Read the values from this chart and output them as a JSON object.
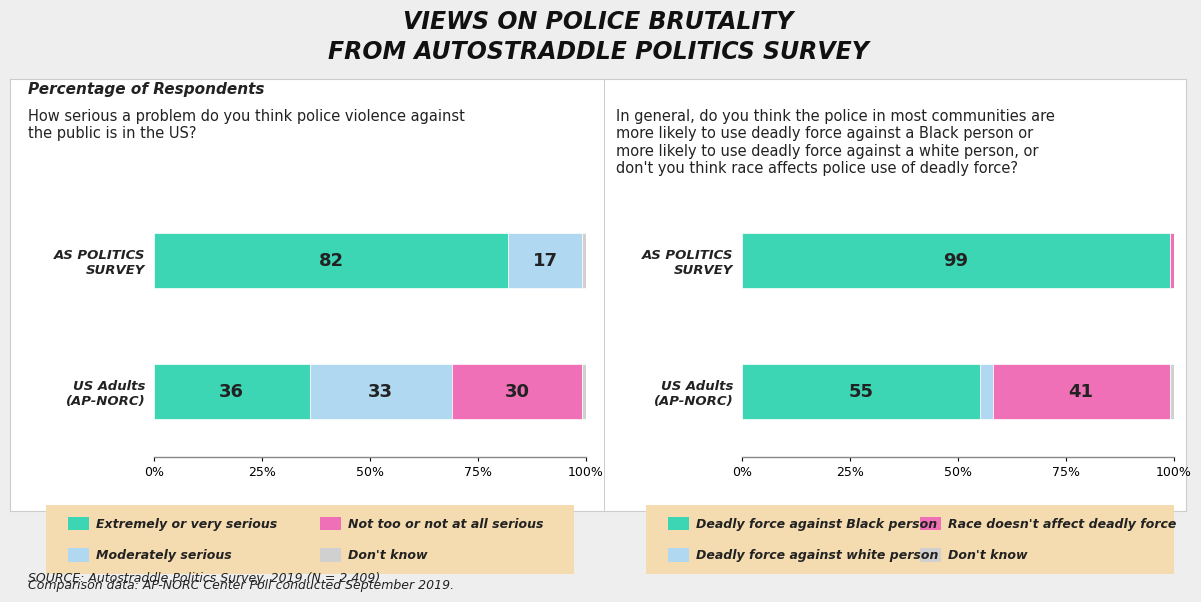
{
  "title_line1": "VIEWS ON POLICE BRUTALITY",
  "title_line2": "FROM AUTOSTRADDLE POLITICS SURVEY",
  "subtitle": "Percentage of Respondents",
  "background_color": "#eeeeee",
  "chart_bg": "#ffffff",
  "legend_bg": "#f5dcb0",
  "q1_question": "How serious a problem do you think police violence against\nthe public is in the US?",
  "q1_rows": [
    "AS POLITICS\nSURVEY",
    "US Adults\n(AP-NORC)"
  ],
  "q1_data": [
    [
      82,
      17,
      0,
      1
    ],
    [
      36,
      33,
      30,
      1
    ]
  ],
  "q1_colors": [
    "#3dd6b5",
    "#b0d8f0",
    "#f070b8",
    "#d0d0d0"
  ],
  "q2_question": "In general, do you think the police in most communities are\nmore likely to use deadly force against a Black person or\nmore likely to use deadly force against a white person, or\ndon't you think race affects police use of deadly force?",
  "q2_rows": [
    "AS POLITICS\nSURVEY",
    "US Adults\n(AP-NORC)"
  ],
  "q2_data": [
    [
      99,
      0,
      1,
      0
    ],
    [
      55,
      3,
      41,
      1
    ]
  ],
  "q2_colors": [
    "#3dd6b5",
    "#b0d8f0",
    "#f070b8",
    "#d0d0d0"
  ],
  "legend1_items": [
    {
      "color": "#3dd6b5",
      "label": "Extremely or very serious"
    },
    {
      "color": "#b0d8f0",
      "label": "Moderately serious"
    },
    {
      "color": "#f070b8",
      "label": "Not too or not at all serious"
    },
    {
      "color": "#d0d0d0",
      "label": "Don't know"
    }
  ],
  "legend2_items": [
    {
      "color": "#3dd6b5",
      "label": "Deadly force against Black person"
    },
    {
      "color": "#b0d8f0",
      "label": "Deadly force against white person"
    },
    {
      "color": "#f070b8",
      "label": "Race doesn't affect deadly force"
    },
    {
      "color": "#d0d0d0",
      "label": "Don't know"
    }
  ],
  "source_line1": "SOURCE: Autostraddle Politics Survey, 2019 (N = 2,409)",
  "source_line2": "Comparison data: AP-NORC Center Poll conducted September 2019."
}
